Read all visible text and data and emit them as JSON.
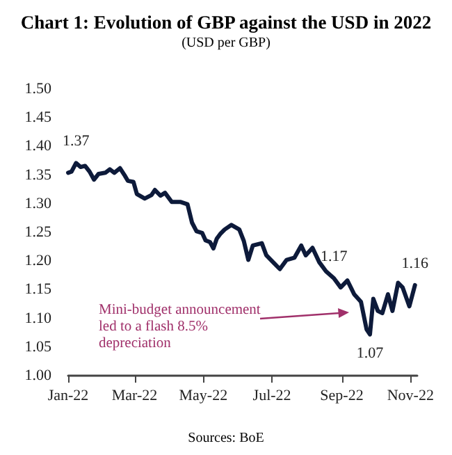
{
  "chart_data": {
    "type": "line",
    "title": "Chart 1: Evolution of GBP against the USD in 2022",
    "subtitle": "(USD per GBP)",
    "x": [
      "2022-01-01",
      "2022-01-04",
      "2022-01-08",
      "2022-01-12",
      "2022-01-16",
      "2022-01-20",
      "2022-01-24",
      "2022-01-28",
      "2022-02-03",
      "2022-02-07",
      "2022-02-11",
      "2022-02-16",
      "2022-02-20",
      "2022-02-23",
      "2022-02-28",
      "2022-03-03",
      "2022-03-10",
      "2022-03-16",
      "2022-03-19",
      "2022-03-24",
      "2022-03-28",
      "2022-04-03",
      "2022-04-11",
      "2022-04-17",
      "2022-04-21",
      "2022-04-25",
      "2022-04-30",
      "2022-05-03",
      "2022-05-07",
      "2022-05-10",
      "2022-05-13",
      "2022-05-16",
      "2022-05-20",
      "2022-05-26",
      "2022-06-02",
      "2022-06-06",
      "2022-06-10",
      "2022-06-14",
      "2022-06-22",
      "2022-06-26",
      "2022-07-02",
      "2022-07-08",
      "2022-07-14",
      "2022-07-21",
      "2022-07-27",
      "2022-07-31",
      "2022-08-06",
      "2022-08-12",
      "2022-08-18",
      "2022-08-25",
      "2022-08-31",
      "2022-09-06",
      "2022-09-12",
      "2022-09-18",
      "2022-09-23",
      "2022-09-26",
      "2022-09-29",
      "2022-10-03",
      "2022-10-07",
      "2022-10-12",
      "2022-10-16",
      "2022-10-21",
      "2022-10-25",
      "2022-10-31",
      "2022-11-05"
    ],
    "series": [
      {
        "color": "#0d1a3a",
        "values": [
          1.354,
          1.356,
          1.371,
          1.364,
          1.366,
          1.356,
          1.342,
          1.352,
          1.354,
          1.36,
          1.354,
          1.362,
          1.35,
          1.34,
          1.338,
          1.317,
          1.309,
          1.315,
          1.324,
          1.314,
          1.319,
          1.303,
          1.303,
          1.299,
          1.267,
          1.252,
          1.249,
          1.236,
          1.233,
          1.222,
          1.239,
          1.247,
          1.255,
          1.263,
          1.255,
          1.235,
          1.202,
          1.227,
          1.231,
          1.21,
          1.198,
          1.186,
          1.202,
          1.206,
          1.227,
          1.21,
          1.223,
          1.198,
          1.182,
          1.17,
          1.154,
          1.166,
          1.142,
          1.129,
          1.081,
          1.072,
          1.134,
          1.113,
          1.109,
          1.142,
          1.113,
          1.162,
          1.154,
          1.121,
          1.158
        ]
      }
    ],
    "xlim": [
      "2022-01-01",
      "2022-11-07"
    ],
    "xticks": [
      {
        "value": "2022-01-01",
        "label": "Jan-22"
      },
      {
        "value": "2022-03-01",
        "label": "Mar-22"
      },
      {
        "value": "2022-05-01",
        "label": "May-22"
      },
      {
        "value": "2022-07-01",
        "label": "Jul-22"
      },
      {
        "value": "2022-09-01",
        "label": "Sep-22"
      },
      {
        "value": "2022-11-01",
        "label": "Nov-22"
      }
    ],
    "ylim": [
      1.0,
      1.5
    ],
    "yticks": [
      {
        "value": 1.0,
        "label": "1.00"
      },
      {
        "value": 1.05,
        "label": "1.05"
      },
      {
        "value": 1.1,
        "label": "1.10"
      },
      {
        "value": 1.15,
        "label": "1.15"
      },
      {
        "value": 1.2,
        "label": "1.20"
      },
      {
        "value": 1.25,
        "label": "1.25"
      },
      {
        "value": 1.3,
        "label": "1.30"
      },
      {
        "value": 1.35,
        "label": "1.35"
      },
      {
        "value": 1.4,
        "label": "1.40"
      },
      {
        "value": 1.45,
        "label": "1.45"
      },
      {
        "value": 1.5,
        "label": "1.50"
      }
    ],
    "annotations": [
      {
        "text": "1.37",
        "x": "2022-01-08",
        "y": 1.371
      },
      {
        "text": "1.17",
        "x": "2022-08-25",
        "y": 1.17
      },
      {
        "text": "1.07",
        "x": "2022-09-26",
        "y": 1.072
      },
      {
        "text": "1.16",
        "x": "2022-11-05",
        "y": 1.158
      },
      "Mini-budget announcement led to a flash 8.5% depreciation",
      "Sources: BoE"
    ],
    "grid": false,
    "marker": "none",
    "line_style": "solid"
  }
}
